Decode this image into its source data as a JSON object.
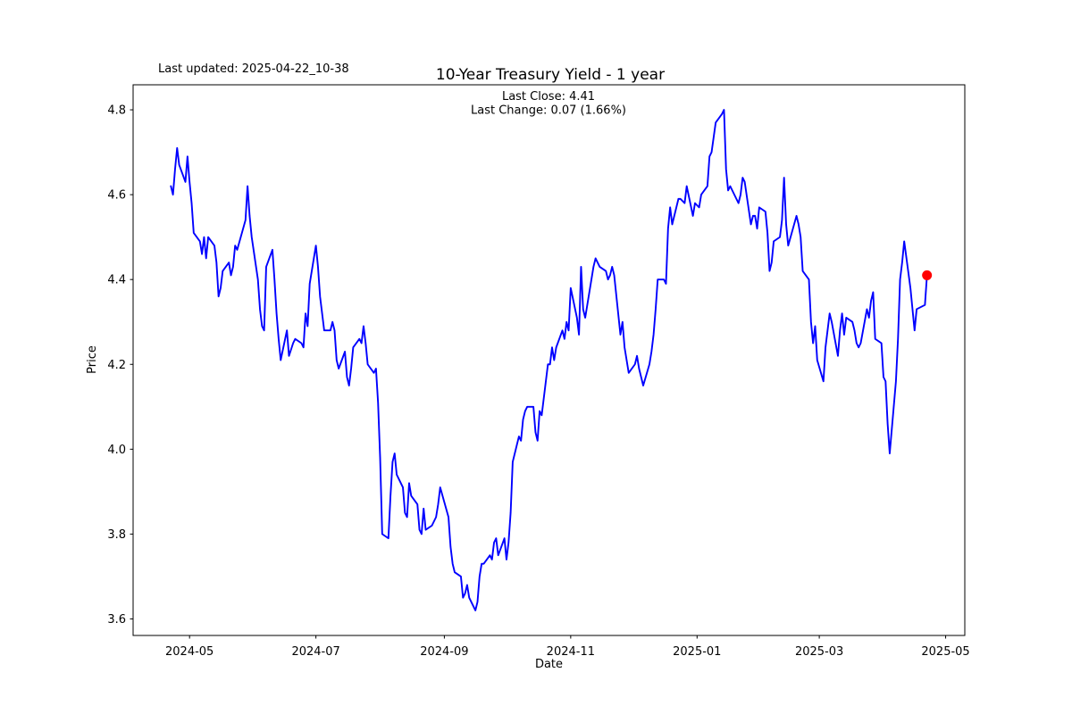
{
  "figure": {
    "last_updated": "Last updated: 2025-04-22_10-38",
    "title": "10-Year Treasury Yield - 1 year",
    "subtitle_line1": "Last Close: 4.41",
    "subtitle_line2": "Last Change: 0.07 (1.66%)",
    "colors": {
      "line": "#0000ff",
      "marker": "#ff0000",
      "text": "#000000",
      "axis": "#000000",
      "background": "#ffffff"
    }
  },
  "chart_data": {
    "type": "line",
    "title": "10-Year Treasury Yield - 1 year",
    "xlabel": "Date",
    "ylabel": "Price",
    "grid": false,
    "legend": "none",
    "last_close": 4.41,
    "last_change_abs": 0.07,
    "last_change_pct": "1.66%",
    "x_tick_labels": [
      "2024-05",
      "2024-07",
      "2024-09",
      "2024-11",
      "2025-01",
      "2025-03",
      "2025-05"
    ],
    "y_tick_labels": [
      "3.6",
      "3.8",
      "4.0",
      "4.2",
      "4.4",
      "4.6",
      "4.8"
    ],
    "ylim": [
      3.56,
      4.86
    ],
    "marker_point": {
      "date": "2025-04-22",
      "value": 4.41,
      "color": "#ff0000"
    },
    "series": [
      {
        "name": "10-Year Treasury Yield",
        "color": "#0000ff",
        "dates": [
          "2024-04-22",
          "2024-04-23",
          "2024-04-24",
          "2024-04-25",
          "2024-04-26",
          "2024-04-29",
          "2024-04-30",
          "2024-05-01",
          "2024-05-02",
          "2024-05-03",
          "2024-05-06",
          "2024-05-07",
          "2024-05-08",
          "2024-05-09",
          "2024-05-10",
          "2024-05-13",
          "2024-05-14",
          "2024-05-15",
          "2024-05-16",
          "2024-05-17",
          "2024-05-20",
          "2024-05-21",
          "2024-05-22",
          "2024-05-23",
          "2024-05-24",
          "2024-05-28",
          "2024-05-29",
          "2024-05-30",
          "2024-05-31",
          "2024-06-03",
          "2024-06-04",
          "2024-06-05",
          "2024-06-06",
          "2024-06-07",
          "2024-06-10",
          "2024-06-11",
          "2024-06-12",
          "2024-06-13",
          "2024-06-14",
          "2024-06-17",
          "2024-06-18",
          "2024-06-20",
          "2024-06-21",
          "2024-06-24",
          "2024-06-25",
          "2024-06-26",
          "2024-06-27",
          "2024-06-28",
          "2024-07-01",
          "2024-07-02",
          "2024-07-03",
          "2024-07-05",
          "2024-07-08",
          "2024-07-09",
          "2024-07-10",
          "2024-07-11",
          "2024-07-12",
          "2024-07-15",
          "2024-07-16",
          "2024-07-17",
          "2024-07-18",
          "2024-07-19",
          "2024-07-22",
          "2024-07-23",
          "2024-07-24",
          "2024-07-25",
          "2024-07-26",
          "2024-07-29",
          "2024-07-30",
          "2024-07-31",
          "2024-08-01",
          "2024-08-02",
          "2024-08-05",
          "2024-08-06",
          "2024-08-07",
          "2024-08-08",
          "2024-08-09",
          "2024-08-12",
          "2024-08-13",
          "2024-08-14",
          "2024-08-15",
          "2024-08-16",
          "2024-08-19",
          "2024-08-20",
          "2024-08-21",
          "2024-08-22",
          "2024-08-23",
          "2024-08-26",
          "2024-08-27",
          "2024-08-28",
          "2024-08-29",
          "2024-08-30",
          "2024-09-03",
          "2024-09-04",
          "2024-09-05",
          "2024-09-06",
          "2024-09-09",
          "2024-09-10",
          "2024-09-11",
          "2024-09-12",
          "2024-09-13",
          "2024-09-16",
          "2024-09-17",
          "2024-09-18",
          "2024-09-19",
          "2024-09-20",
          "2024-09-23",
          "2024-09-24",
          "2024-09-25",
          "2024-09-26",
          "2024-09-27",
          "2024-09-30",
          "2024-10-01",
          "2024-10-02",
          "2024-10-03",
          "2024-10-04",
          "2024-10-07",
          "2024-10-08",
          "2024-10-09",
          "2024-10-10",
          "2024-10-11",
          "2024-10-14",
          "2024-10-15",
          "2024-10-16",
          "2024-10-17",
          "2024-10-18",
          "2024-10-21",
          "2024-10-22",
          "2024-10-23",
          "2024-10-24",
          "2024-10-25",
          "2024-10-28",
          "2024-10-29",
          "2024-10-30",
          "2024-10-31",
          "2024-11-01",
          "2024-11-04",
          "2024-11-05",
          "2024-11-06",
          "2024-11-07",
          "2024-11-08",
          "2024-11-12",
          "2024-11-13",
          "2024-11-14",
          "2024-11-15",
          "2024-11-18",
          "2024-11-19",
          "2024-11-20",
          "2024-11-21",
          "2024-11-22",
          "2024-11-25",
          "2024-11-26",
          "2024-11-27",
          "2024-11-29",
          "2024-12-02",
          "2024-12-03",
          "2024-12-04",
          "2024-12-05",
          "2024-12-06",
          "2024-12-09",
          "2024-12-10",
          "2024-12-11",
          "2024-12-12",
          "2024-12-13",
          "2024-12-16",
          "2024-12-17",
          "2024-12-18",
          "2024-12-19",
          "2024-12-20",
          "2024-12-23",
          "2024-12-24",
          "2024-12-26",
          "2024-12-27",
          "2024-12-30",
          "2024-12-31",
          "2025-01-02",
          "2025-01-03",
          "2025-01-06",
          "2025-01-07",
          "2025-01-08",
          "2025-01-10",
          "2025-01-13",
          "2025-01-14",
          "2025-01-15",
          "2025-01-16",
          "2025-01-17",
          "2025-01-21",
          "2025-01-22",
          "2025-01-23",
          "2025-01-24",
          "2025-01-27",
          "2025-01-28",
          "2025-01-29",
          "2025-01-30",
          "2025-01-31",
          "2025-02-03",
          "2025-02-04",
          "2025-02-05",
          "2025-02-06",
          "2025-02-07",
          "2025-02-10",
          "2025-02-11",
          "2025-02-12",
          "2025-02-13",
          "2025-02-14",
          "2025-02-18",
          "2025-02-19",
          "2025-02-20",
          "2025-02-21",
          "2025-02-24",
          "2025-02-25",
          "2025-02-26",
          "2025-02-27",
          "2025-02-28",
          "2025-03-03",
          "2025-03-04",
          "2025-03-05",
          "2025-03-06",
          "2025-03-07",
          "2025-03-10",
          "2025-03-11",
          "2025-03-12",
          "2025-03-13",
          "2025-03-14",
          "2025-03-17",
          "2025-03-18",
          "2025-03-19",
          "2025-03-20",
          "2025-03-21",
          "2025-03-24",
          "2025-03-25",
          "2025-03-26",
          "2025-03-27",
          "2025-03-28",
          "2025-03-31",
          "2025-04-01",
          "2025-04-02",
          "2025-04-03",
          "2025-04-04",
          "2025-04-07",
          "2025-04-08",
          "2025-04-09",
          "2025-04-10",
          "2025-04-11",
          "2025-04-14",
          "2025-04-15",
          "2025-04-16",
          "2025-04-17",
          "2025-04-21",
          "2025-04-22"
        ],
        "values": [
          4.62,
          4.6,
          4.66,
          4.71,
          4.67,
          4.63,
          4.69,
          4.63,
          4.58,
          4.51,
          4.49,
          4.46,
          4.5,
          4.45,
          4.5,
          4.48,
          4.44,
          4.36,
          4.38,
          4.42,
          4.44,
          4.41,
          4.43,
          4.48,
          4.47,
          4.54,
          4.62,
          4.55,
          4.5,
          4.4,
          4.33,
          4.29,
          4.28,
          4.43,
          4.47,
          4.4,
          4.32,
          4.26,
          4.21,
          4.28,
          4.22,
          4.25,
          4.26,
          4.25,
          4.24,
          4.32,
          4.29,
          4.39,
          4.48,
          4.43,
          4.36,
          4.28,
          4.28,
          4.3,
          4.28,
          4.21,
          4.19,
          4.23,
          4.17,
          4.15,
          4.19,
          4.24,
          4.26,
          4.25,
          4.29,
          4.25,
          4.2,
          4.18,
          4.19,
          4.11,
          3.98,
          3.8,
          3.79,
          3.89,
          3.97,
          3.99,
          3.94,
          3.91,
          3.85,
          3.84,
          3.92,
          3.89,
          3.87,
          3.81,
          3.8,
          3.86,
          3.81,
          3.82,
          3.83,
          3.84,
          3.87,
          3.91,
          3.84,
          3.77,
          3.73,
          3.71,
          3.7,
          3.65,
          3.66,
          3.68,
          3.65,
          3.62,
          3.64,
          3.7,
          3.73,
          3.73,
          3.75,
          3.74,
          3.78,
          3.79,
          3.75,
          3.79,
          3.74,
          3.78,
          3.85,
          3.97,
          4.03,
          4.02,
          4.07,
          4.09,
          4.1,
          4.1,
          4.04,
          4.02,
          4.09,
          4.08,
          4.2,
          4.2,
          4.24,
          4.21,
          4.24,
          4.28,
          4.26,
          4.3,
          4.28,
          4.38,
          4.31,
          4.27,
          4.43,
          4.33,
          4.31,
          4.43,
          4.45,
          4.44,
          4.43,
          4.42,
          4.4,
          4.41,
          4.43,
          4.41,
          4.27,
          4.3,
          4.24,
          4.18,
          4.2,
          4.22,
          4.19,
          4.17,
          4.15,
          4.2,
          4.23,
          4.27,
          4.33,
          4.4,
          4.4,
          4.39,
          4.52,
          4.57,
          4.53,
          4.59,
          4.59,
          4.58,
          4.62,
          4.55,
          4.58,
          4.57,
          4.6,
          4.62,
          4.69,
          4.7,
          4.77,
          4.79,
          4.8,
          4.66,
          4.61,
          4.62,
          4.58,
          4.6,
          4.64,
          4.63,
          4.53,
          4.55,
          4.55,
          4.52,
          4.57,
          4.56,
          4.51,
          4.42,
          4.44,
          4.49,
          4.5,
          4.54,
          4.64,
          4.53,
          4.48,
          4.55,
          4.53,
          4.5,
          4.42,
          4.4,
          4.3,
          4.25,
          4.29,
          4.21,
          4.16,
          4.24,
          4.28,
          4.32,
          4.3,
          4.22,
          4.28,
          4.32,
          4.27,
          4.31,
          4.3,
          4.28,
          4.25,
          4.24,
          4.25,
          4.33,
          4.31,
          4.35,
          4.37,
          4.26,
          4.25,
          4.17,
          4.16,
          4.06,
          3.99,
          4.16,
          4.26,
          4.4,
          4.44,
          4.49,
          4.38,
          4.33,
          4.28,
          4.33,
          4.34,
          4.41
        ]
      }
    ]
  }
}
